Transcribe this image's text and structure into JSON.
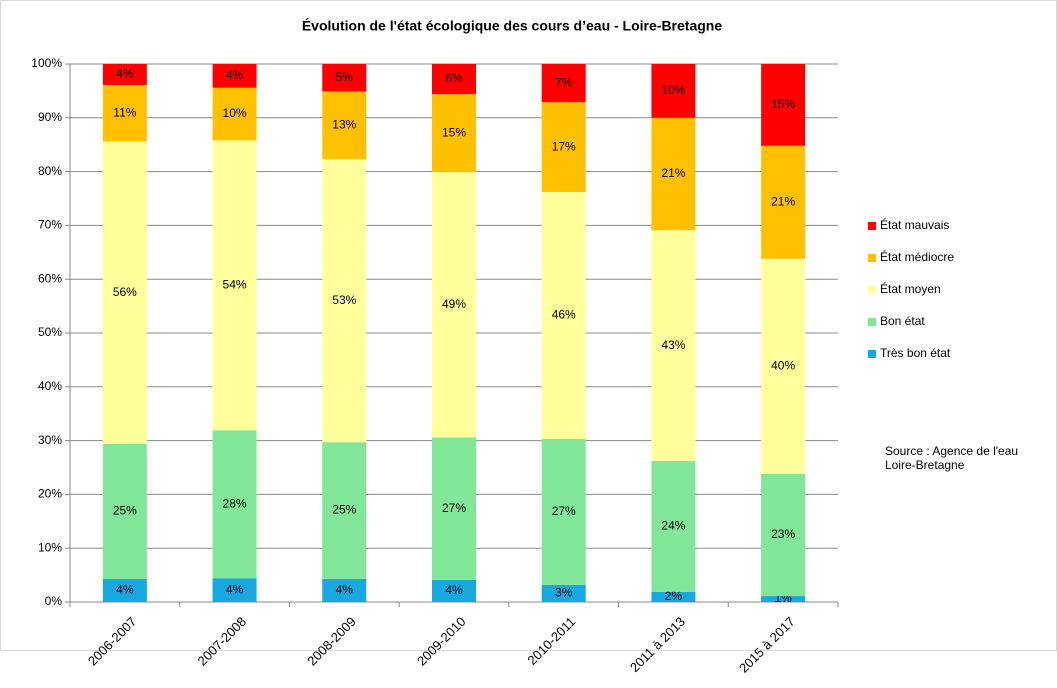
{
  "chart_data": {
    "type": "stacked_bar",
    "title": "Évolution de l'état écologique des cours d’eau  - Loire-Bretagne",
    "categories": [
      "2006-2007",
      "2007-2008",
      "2008-2009",
      "2009-2010",
      "2010-2011",
      "2011 à 2013",
      "2015 à 2017"
    ],
    "series": [
      {
        "name": "Très bon état",
        "color": "#16a8df",
        "values": [
          4.3,
          4.4,
          4.3,
          4.1,
          3.2,
          1.9,
          1.1
        ],
        "value_labels": [
          "4%",
          "4%",
          "4%",
          "4%",
          "3%",
          "2%",
          "1%"
        ]
      },
      {
        "name": "Bon état",
        "color": "#82e698",
        "values": [
          25.1,
          27.5,
          25.4,
          26.5,
          27.1,
          24.3,
          22.7
        ],
        "value_labels": [
          "25%",
          "28%",
          "25%",
          "27%",
          "27%",
          "24%",
          "23%"
        ]
      },
      {
        "name": "État moyen",
        "color": "#ffff9c",
        "values": [
          56.2,
          53.9,
          52.6,
          49.3,
          45.9,
          42.9,
          40.0
        ],
        "value_labels": [
          "56%",
          "54%",
          "53%",
          "49%",
          "46%",
          "43%",
          "40%"
        ]
      },
      {
        "name": "État médiocre",
        "color": "#ffc000",
        "values": [
          10.5,
          9.8,
          12.6,
          14.5,
          16.7,
          20.9,
          21.0
        ],
        "value_labels": [
          "11%",
          "10%",
          "13%",
          "15%",
          "17%",
          "21%",
          "21%"
        ]
      },
      {
        "name": "État mauvais",
        "color": "#ff0000",
        "values": [
          3.9,
          4.4,
          5.1,
          5.6,
          7.1,
          10.0,
          15.2
        ],
        "value_labels": [
          "4%",
          "4%",
          "5%",
          "6%",
          "7%",
          "10%",
          "15%"
        ]
      }
    ],
    "ylim": [
      0,
      100
    ],
    "yticks": [
      {
        "value": 0,
        "label": "0%"
      },
      {
        "value": 10,
        "label": "10%"
      },
      {
        "value": 20,
        "label": "20%"
      },
      {
        "value": 30,
        "label": "30%"
      },
      {
        "value": 40,
        "label": "40%"
      },
      {
        "value": 50,
        "label": "50%"
      },
      {
        "value": 60,
        "label": "60%"
      },
      {
        "value": 70,
        "label": "70%"
      },
      {
        "value": 80,
        "label": "80%"
      },
      {
        "value": 90,
        "label": "90%"
      },
      {
        "value": 100,
        "label": "100%"
      }
    ],
    "grid": true,
    "legend": "right",
    "source": [
      "Source : Agence de l'eau",
      "Loire-Bretagne"
    ]
  }
}
